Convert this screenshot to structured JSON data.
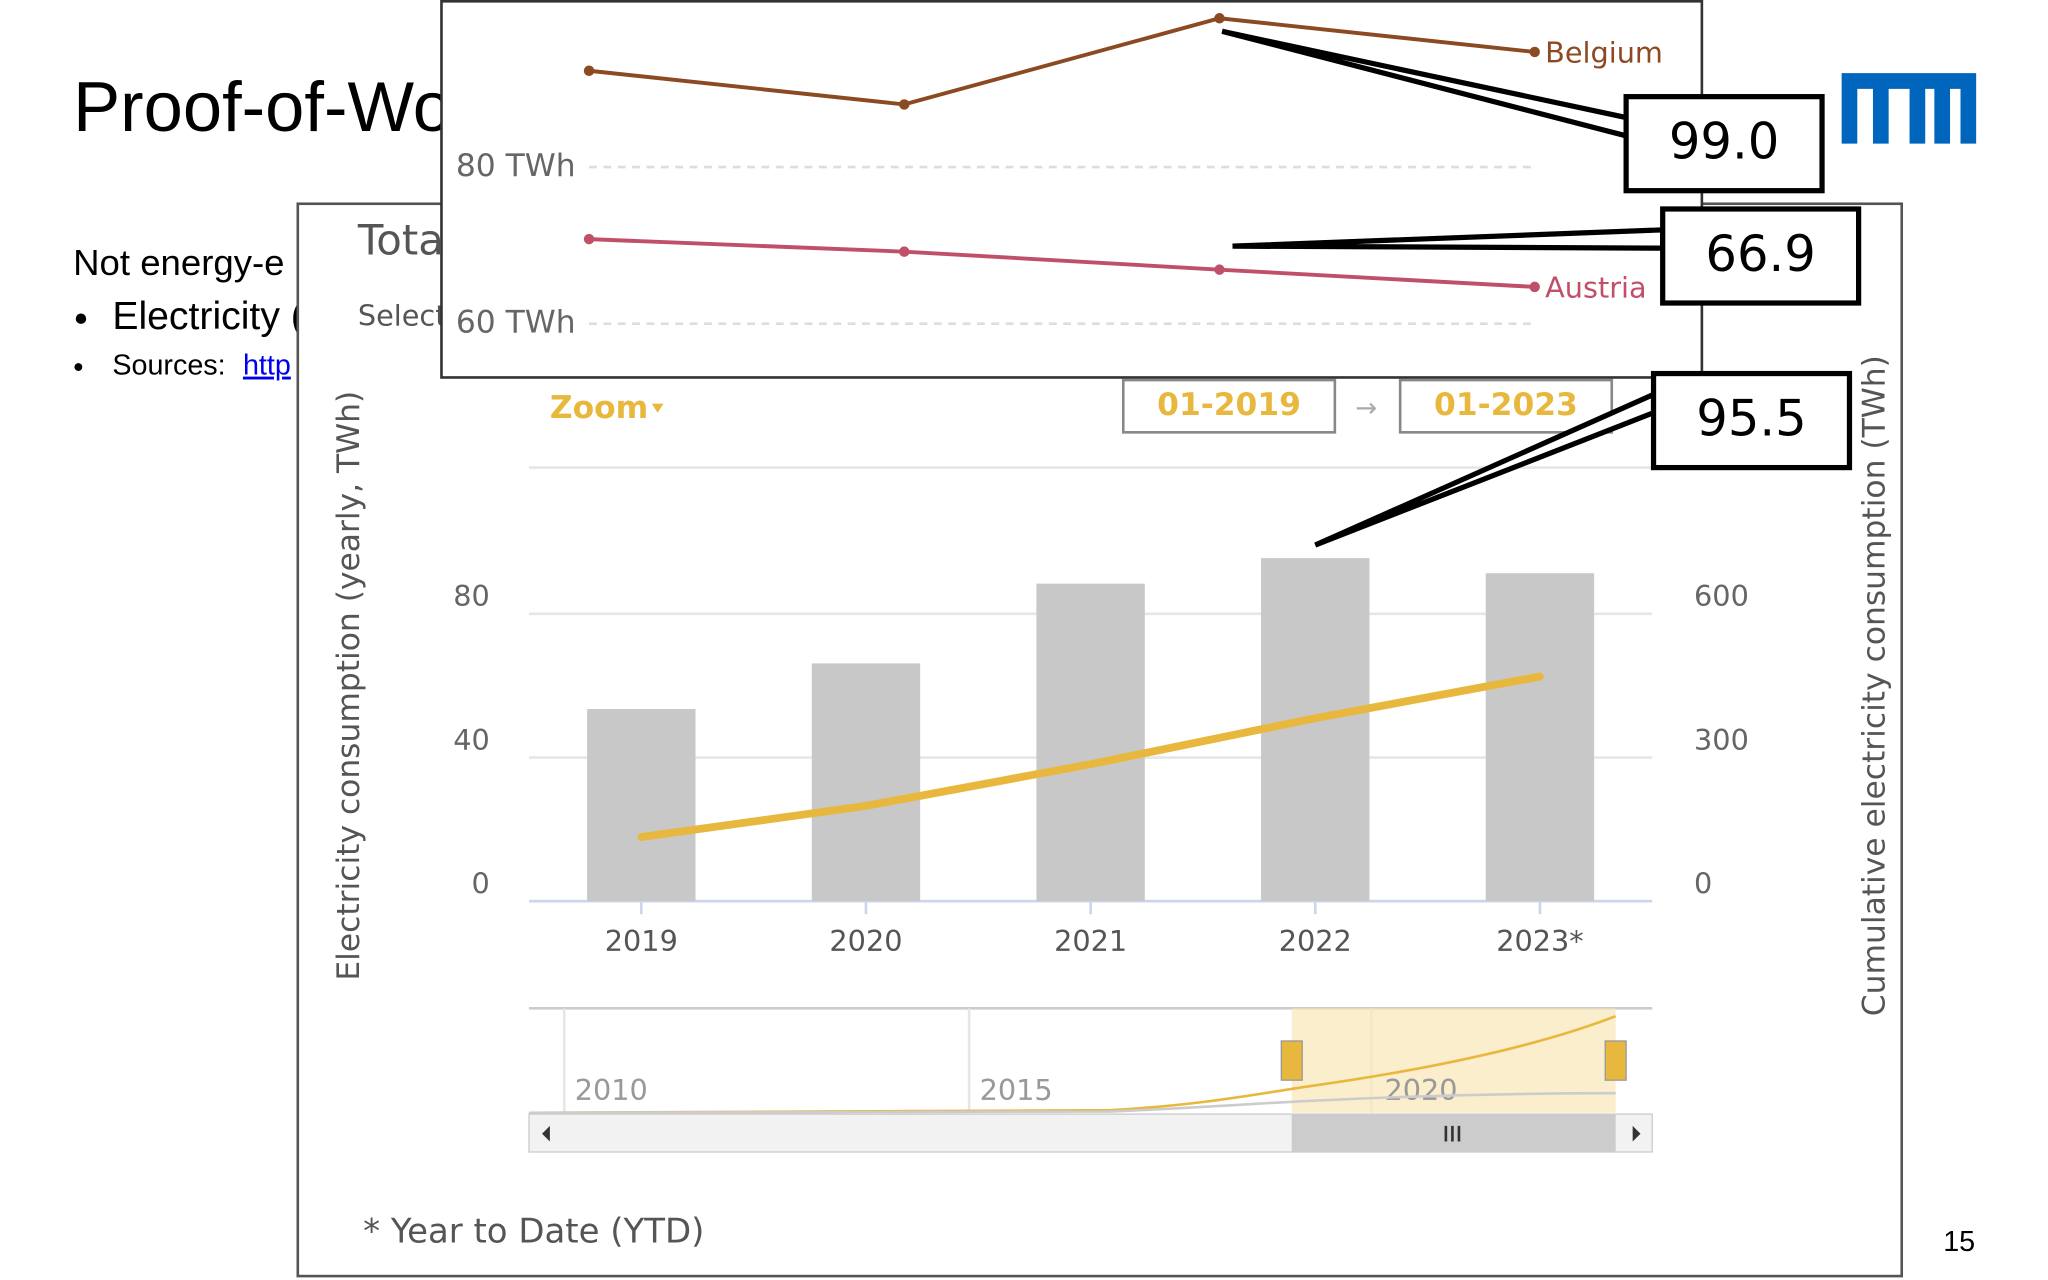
{
  "slide": {
    "title": "Proof-of-Wo",
    "line1": "Not energy-e",
    "bullet1": "Electricity (",
    "sources_label": "Sources:",
    "sources_link": "http",
    "page_number": "15"
  },
  "panel": {
    "title": "Tota",
    "select": "Select",
    "zoom": "Zoom",
    "from": "01-2019",
    "arrow": "→",
    "to": "01-2023",
    "footnote": "* Year to Date (YTD)",
    "navigator_labels": [
      "2010",
      "2015",
      "2020"
    ]
  },
  "chart_data": [
    {
      "type": "bar",
      "categories": [
        "2019",
        "2020",
        "2021",
        "2022",
        "2023*"
      ],
      "ylabel": "Electricity consumption (yearly, TWh)",
      "y2label": "Cumulative electricity consumption (TWh)",
      "ylim": [
        0,
        120.7
      ],
      "yticks": [
        0,
        40,
        80
      ],
      "y2lim": [
        0,
        905
      ],
      "y2ticks": [
        0,
        300,
        600
      ],
      "grid": true,
      "series": [
        {
          "type": "bar",
          "color": "#c8c8c8",
          "values": [
            53.5,
            66.2,
            88.4,
            95.5,
            91.3
          ]
        },
        {
          "type": "line",
          "axis": "y2",
          "color": "#e8b83e",
          "values": [
            134,
            199,
            286,
            382,
            469
          ]
        }
      ],
      "callout": {
        "series": 0,
        "index": 3
      }
    },
    {
      "type": "line",
      "categories": [
        null,
        null,
        null,
        null
      ],
      "ylim": [
        53.3,
        101
      ],
      "yticks": [
        {
          "value": 60,
          "label": "60 TWh"
        },
        {
          "value": 80,
          "label": "80 TWh"
        }
      ],
      "grid": true,
      "series": [
        {
          "name": "Belgium",
          "color": "#8b4a22",
          "values": [
            92.3,
            88,
            99.0,
            94.7
          ],
          "value_labels": [
            null,
            null,
            "99.0",
            null
          ]
        },
        {
          "name": "Austria",
          "color": "#c0506a",
          "values": [
            70.8,
            69.2,
            66.9,
            64.7
          ]
        }
      ]
    }
  ]
}
